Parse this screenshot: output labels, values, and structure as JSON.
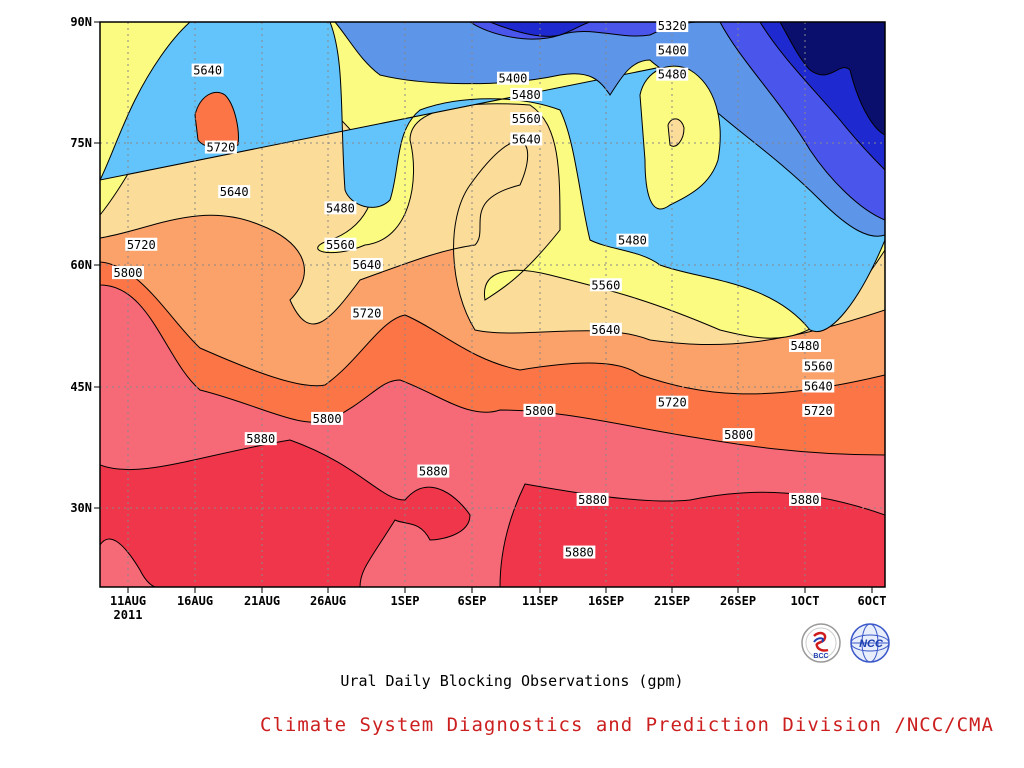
{
  "chart_data": {
    "type": "heatmap",
    "title": "Ural Daily Blocking Observations (gpm)",
    "xlabel": "",
    "ylabel": "",
    "x_tick_labels": [
      "11AUG",
      "16AUG",
      "21AUG",
      "26AUG",
      "1SEP",
      "6SEP",
      "11SEP",
      "16SEP",
      "21SEP",
      "26SEP",
      "1OCT",
      "6OCT"
    ],
    "x_year_label": "2011",
    "y_tick_labels": [
      "30N",
      "45N",
      "60N",
      "75N",
      "90N"
    ],
    "xlim": [
      "11AUG2011",
      "6OCT2011"
    ],
    "ylim_deg_lat": [
      20,
      90
    ],
    "contour_levels": [
      5320,
      5400,
      5480,
      5560,
      5640,
      5720,
      5800,
      5880
    ],
    "fill_colors": [
      "#0a0f6e",
      "#1e2ad0",
      "#4a55ec",
      "#5d95e8",
      "#63c3fb",
      "#fbfb82",
      "#fbdc99",
      "#fba26a",
      "#fb7547",
      "#f66a78",
      "#f0364a"
    ],
    "grid": true,
    "contour_labels": [
      {
        "value": "5320",
        "date": "21SEP",
        "lat": 89.5
      },
      {
        "value": "5400",
        "date": "21SEP",
        "lat": 86.5
      },
      {
        "value": "5480",
        "date": "21SEP",
        "lat": 83.5
      },
      {
        "value": "5400",
        "date": "9SEP",
        "lat": 83
      },
      {
        "value": "5480",
        "date": "10SEP",
        "lat": 81
      },
      {
        "value": "5560",
        "date": "10SEP",
        "lat": 78
      },
      {
        "value": "5640",
        "date": "10SEP",
        "lat": 75.5
      },
      {
        "value": "5640",
        "date": "17AUG",
        "lat": 84
      },
      {
        "value": "5720",
        "date": "18AUG",
        "lat": 74.5
      },
      {
        "value": "5640",
        "date": "19AUG",
        "lat": 69
      },
      {
        "value": "5480",
        "date": "27AUG",
        "lat": 67
      },
      {
        "value": "5560",
        "date": "27AUG",
        "lat": 62.5
      },
      {
        "value": "5640",
        "date": "29AUG",
        "lat": 60
      },
      {
        "value": "5720",
        "date": "29AUG",
        "lat": 54
      },
      {
        "value": "5720",
        "date": "12AUG",
        "lat": 62.5
      },
      {
        "value": "5800",
        "date": "11AUG",
        "lat": 59
      },
      {
        "value": "5480",
        "date": "18SEP",
        "lat": 63
      },
      {
        "value": "5560",
        "date": "16SEP",
        "lat": 57.5
      },
      {
        "value": "5640",
        "date": "16SEP",
        "lat": 52
      },
      {
        "value": "5720",
        "date": "21SEP",
        "lat": 43
      },
      {
        "value": "5800",
        "date": "11SEP",
        "lat": 42
      },
      {
        "value": "5800",
        "date": "26AUG",
        "lat": 41
      },
      {
        "value": "5880",
        "date": "21AUG",
        "lat": 38.5
      },
      {
        "value": "5880",
        "date": "3SEP",
        "lat": 34.5
      },
      {
        "value": "5880",
        "date": "15SEP",
        "lat": 31
      },
      {
        "value": "5880",
        "date": "14SEP",
        "lat": 24.5
      },
      {
        "value": "5800",
        "date": "26SEP",
        "lat": 39
      },
      {
        "value": "5880",
        "date": "1OCT",
        "lat": 31
      },
      {
        "value": "5480",
        "date": "1OCT",
        "lat": 50
      },
      {
        "value": "5560",
        "date": "2OCT",
        "lat": 47.5
      },
      {
        "value": "5640",
        "date": "2OCT",
        "lat": 45
      },
      {
        "value": "5720",
        "date": "2OCT",
        "lat": 42
      }
    ]
  },
  "credit": "Climate System Diagnostics and Prediction Division /NCC/CMA",
  "logos": {
    "left": {
      "text": "BCC"
    },
    "right": {
      "text": "NCC"
    }
  }
}
